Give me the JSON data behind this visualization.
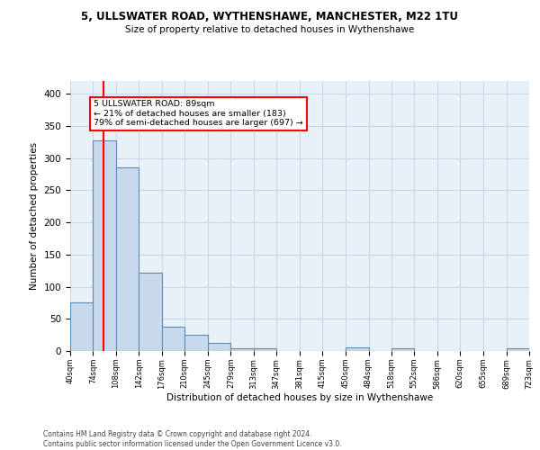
{
  "title1": "5, ULLSWATER ROAD, WYTHENSHAWE, MANCHESTER, M22 1TU",
  "title2": "Size of property relative to detached houses in Wythenshawe",
  "xlabel": "Distribution of detached houses by size in Wythenshawe",
  "ylabel": "Number of detached properties",
  "footer1": "Contains HM Land Registry data © Crown copyright and database right 2024.",
  "footer2": "Contains public sector information licensed under the Open Government Licence v3.0.",
  "annotation_title": "5 ULLSWATER ROAD: 89sqm",
  "annotation_line2": "← 21% of detached houses are smaller (183)",
  "annotation_line3": "79% of semi-detached houses are larger (697) →",
  "bar_edges": [
    40,
    74,
    108,
    142,
    176,
    210,
    245,
    279,
    313,
    347,
    381,
    415,
    450,
    484,
    518,
    552,
    586,
    620,
    655,
    689,
    723
  ],
  "bar_heights": [
    75,
    327,
    285,
    122,
    38,
    25,
    13,
    4,
    4,
    0,
    0,
    0,
    5,
    0,
    4,
    0,
    0,
    0,
    0,
    4
  ],
  "bar_color": "#c9d9ec",
  "bar_edge_color": "#5b8db8",
  "red_line_x": 89,
  "ylim": [
    0,
    420
  ],
  "background_color": "#ffffff",
  "ax_background": "#e8f0f8",
  "grid_color": "#c8d8e8"
}
